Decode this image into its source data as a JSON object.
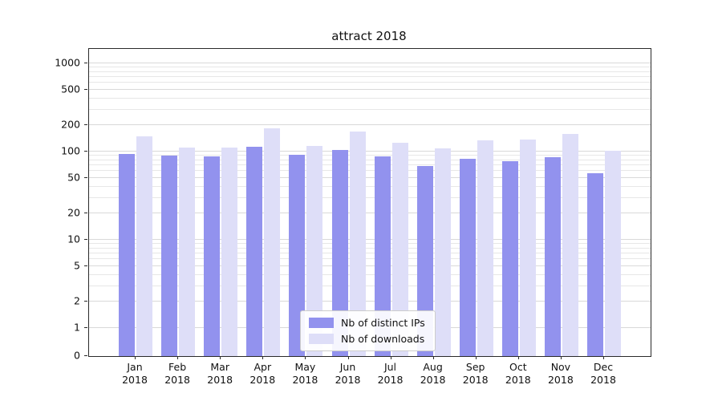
{
  "title": "attract 2018",
  "colors": {
    "ips_bar": "#9292ee",
    "downloads_bar": "#dedef8",
    "grid_minor": "#e7e7e7",
    "grid_major": "#d9d9d9",
    "axis": "#2a2a2a",
    "background": "#ffffff"
  },
  "legend": {
    "entries": [
      "Nb of distinct IPs",
      "Nb of downloads"
    ]
  },
  "chart_data": {
    "type": "bar",
    "title": "attract 2018",
    "categories": [
      "Jan 2018",
      "Feb 2018",
      "Mar 2018",
      "Apr 2018",
      "May 2018",
      "Jun 2018",
      "Jul 2018",
      "Aug 2018",
      "Sep 2018",
      "Oct 2018",
      "Nov 2018",
      "Dec 2018"
    ],
    "series": [
      {
        "name": "Nb of distinct IPs",
        "color": "#9292ee",
        "values": [
          95,
          90,
          88,
          113,
          92,
          105,
          88,
          68,
          83,
          78,
          87,
          57
        ]
      },
      {
        "name": "Nb of downloads",
        "color": "#dedef8",
        "values": [
          150,
          110,
          112,
          185,
          115,
          170,
          125,
          108,
          133,
          136,
          160,
          103
        ]
      }
    ],
    "yscale": "symlog",
    "yticks": [
      0,
      1,
      2,
      5,
      10,
      20,
      50,
      100,
      200,
      500,
      1000
    ],
    "ylim": [
      0,
      1400
    ],
    "xlabel": "",
    "ylabel": "",
    "grid": "horizontal",
    "legend_position": "lower center"
  }
}
